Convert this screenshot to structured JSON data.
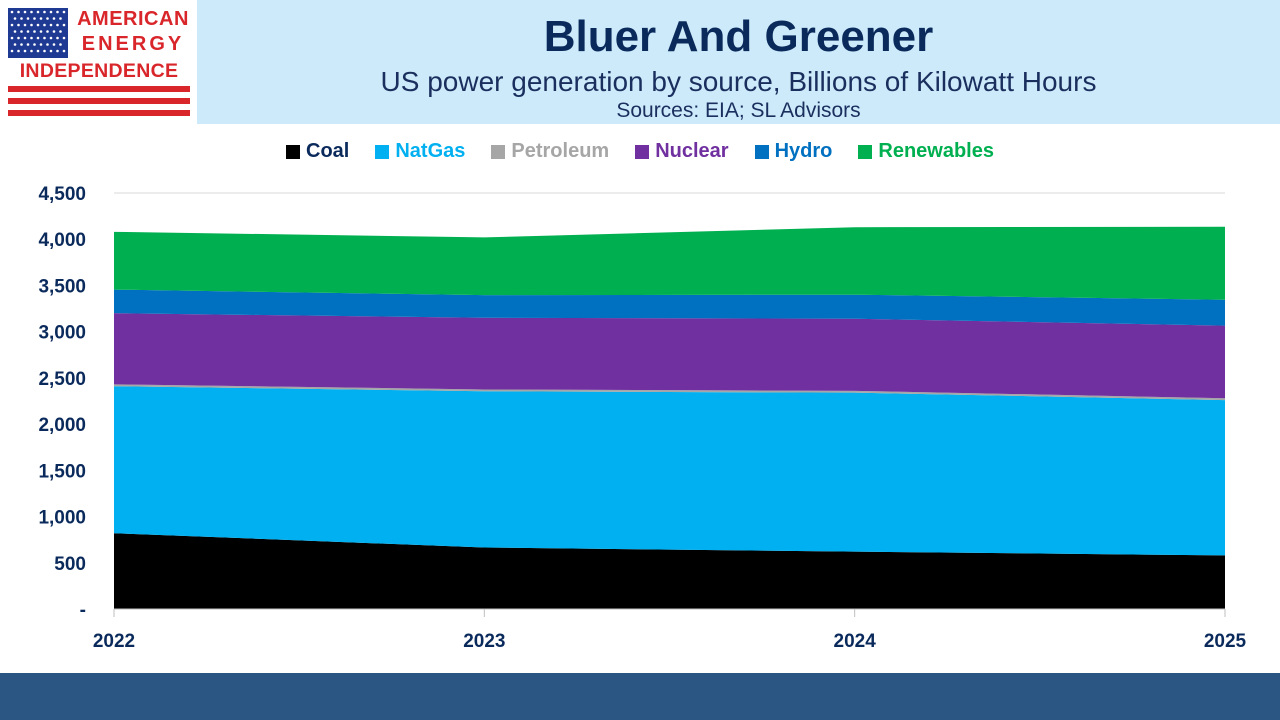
{
  "logo": {
    "line1": "AMERICAN",
    "line2": "ENERGY",
    "line3": "INDEPENDENCE",
    "colors": {
      "red": "#d9262b",
      "blue": "#1f3a93"
    }
  },
  "header": {
    "title": "Bluer And Greener",
    "subtitle": "US power generation by source, Billions of Kilowatt Hours",
    "sources": "Sources: EIA; SL Advisors"
  },
  "chart_data": {
    "type": "area",
    "stacked": true,
    "x": [
      "2022",
      "2023",
      "2024",
      "2025"
    ],
    "series": [
      {
        "name": "Coal",
        "color": "#000000",
        "values": [
          820,
          665,
          620,
          580
        ]
      },
      {
        "name": "NatGas",
        "color": "#00b0f0",
        "values": [
          1590,
          1690,
          1720,
          1680
        ]
      },
      {
        "name": "Petroleum",
        "color": "#a6a6a6",
        "values": [
          20,
          20,
          20,
          20
        ]
      },
      {
        "name": "Nuclear",
        "color": "#7030a0",
        "values": [
          770,
          775,
          780,
          785
        ]
      },
      {
        "name": "Hydro",
        "color": "#0070c0",
        "values": [
          255,
          245,
          260,
          280
        ]
      },
      {
        "name": "Renewables",
        "color": "#00b050",
        "values": [
          625,
          625,
          730,
          790
        ]
      }
    ],
    "ylim": [
      0,
      4500
    ],
    "yticks": [
      {
        "value": 0,
        "label": "-"
      },
      {
        "value": 500,
        "label": "500"
      },
      {
        "value": 1000,
        "label": "1,000"
      },
      {
        "value": 1500,
        "label": "1,500"
      },
      {
        "value": 2000,
        "label": "2,000"
      },
      {
        "value": 2500,
        "label": "2,500"
      },
      {
        "value": 3000,
        "label": "3,000"
      },
      {
        "value": 3500,
        "label": "3,500"
      },
      {
        "value": 4000,
        "label": "4,000"
      },
      {
        "value": 4500,
        "label": "4,500"
      }
    ],
    "grid": true,
    "legend_position": "top"
  },
  "colors": {
    "header_band": "#cdeafa",
    "footer_bar": "#2b5683",
    "title": "#0b2a5c"
  }
}
